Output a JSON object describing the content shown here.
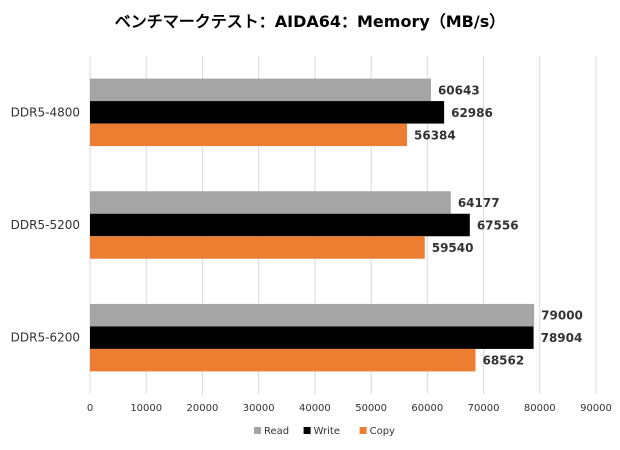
{
  "chart_data": {
    "type": "bar",
    "orientation": "horizontal",
    "title": "ベンチマークテスト：AIDA64：Memory（MB/s）",
    "categories": [
      "DDR5-4800",
      "DDR5-5200",
      "DDR5-6200"
    ],
    "series": [
      {
        "name": "Read",
        "color": "#a5a5a5",
        "values": [
          60643,
          64177,
          79000
        ]
      },
      {
        "name": "Write",
        "color": "#000000",
        "values": [
          62986,
          67556,
          78904
        ]
      },
      {
        "name": "Copy",
        "color": "#ed7d31",
        "values": [
          56384,
          59540,
          68562
        ]
      }
    ],
    "xlim": [
      0,
      90000
    ],
    "xticks": [
      0,
      10000,
      20000,
      30000,
      40000,
      50000,
      60000,
      70000,
      80000,
      90000
    ],
    "xlabel": "",
    "ylabel": "",
    "grid": true,
    "legend": "bottom-center"
  }
}
